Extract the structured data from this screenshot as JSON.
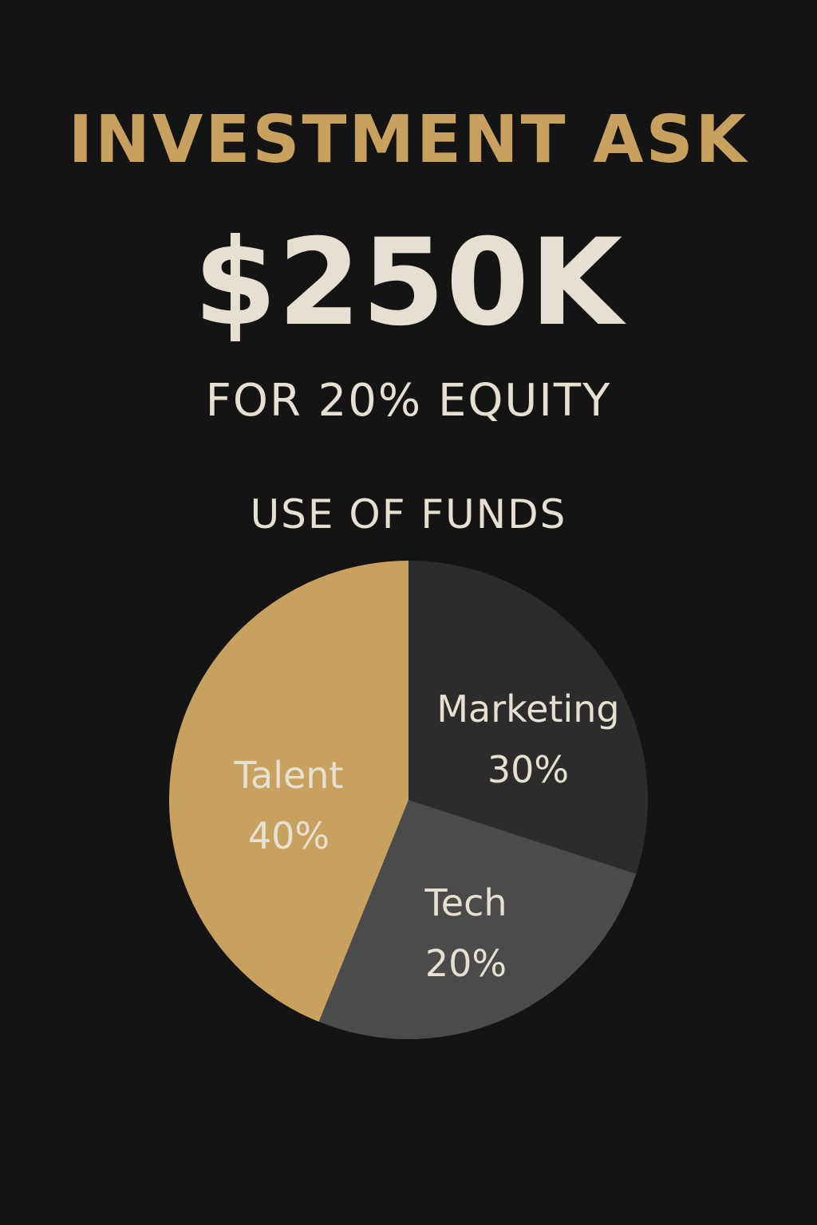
{
  "header": {
    "title": "INVESTMENT ASK",
    "amount": "$250K",
    "equity_terms": "FOR 20% EQUITY"
  },
  "colors": {
    "background": "#141414",
    "accent_gold": "#c9a15e",
    "text_light": "#e6e0d3"
  },
  "chart_data": {
    "type": "pie",
    "title": "USE OF FUNDS",
    "slices": [
      {
        "label": "Talent",
        "value": 40,
        "value_text": "40%",
        "color": "#c9a15e"
      },
      {
        "label": "Marketing",
        "value": 30,
        "value_text": "30%",
        "color": "#2c2c2c"
      },
      {
        "label": "Tech",
        "value": 20,
        "value_text": "20%",
        "color": "#4b4b4b"
      }
    ]
  }
}
